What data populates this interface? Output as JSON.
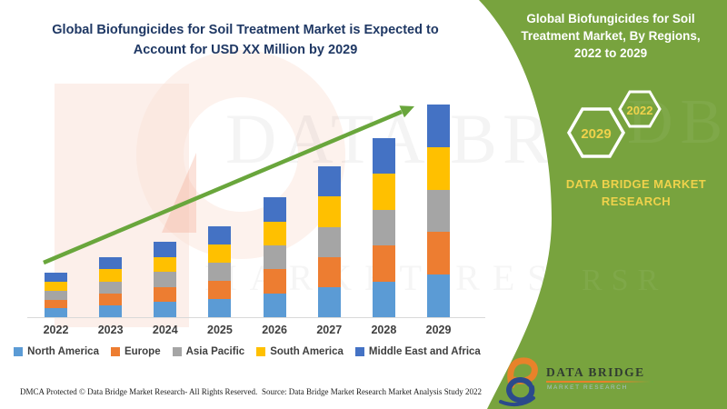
{
  "header": {
    "title_line1": "Global Biofungicides for Soil Treatment Market is Expected to",
    "title_line2": "Account for USD XX Million by 2029",
    "title_color": "#1F3864"
  },
  "chart_data": {
    "type": "bar",
    "stacked": true,
    "title": "Global Biofungicides for Soil Treatment Market is Expected to Account for USD XX Million by 2029",
    "xlabel": "",
    "ylabel": "",
    "units": "relative index (chart shows no numeric axis; values estimated from bar heights)",
    "categories": [
      "2022",
      "2023",
      "2024",
      "2025",
      "2026",
      "2027",
      "2028",
      "2029"
    ],
    "series": [
      {
        "name": "North America",
        "color": "#5B9BD5",
        "values": [
          2.0,
          2.7,
          3.4,
          4.1,
          5.4,
          6.8,
          8.1,
          9.6
        ]
      },
      {
        "name": "Europe",
        "color": "#ED7D31",
        "values": [
          2.0,
          2.7,
          3.4,
          4.1,
          5.4,
          6.8,
          8.1,
          9.6
        ]
      },
      {
        "name": "Asia Pacific",
        "color": "#A5A5A5",
        "values": [
          2.0,
          2.7,
          3.4,
          4.1,
          5.4,
          6.8,
          8.1,
          9.6
        ]
      },
      {
        "name": "South America",
        "color": "#FFC000",
        "values": [
          2.0,
          2.7,
          3.4,
          4.1,
          5.4,
          6.8,
          8.1,
          9.6
        ]
      },
      {
        "name": "Middle East and Africa",
        "color": "#4472C4",
        "values": [
          2.0,
          2.7,
          3.4,
          4.1,
          5.4,
          6.8,
          8.1,
          9.6
        ]
      }
    ],
    "legend_position": "bottom",
    "grid": false,
    "trend_arrow": {
      "present": true,
      "color": "#69A63C",
      "direction": "up-right"
    }
  },
  "side_panel": {
    "bg_color": "#78A33E",
    "title_line1": "Global Biofungicides for Soil",
    "title_line2": "Treatment Market, By Regions,",
    "title_line3": "2022 to 2029",
    "hexagon_left_label": "2029",
    "hexagon_right_label": "2022",
    "brand_line1": "DATA BRIDGE MARKET",
    "brand_line2": "RESEARCH",
    "accent_yellow": "#EFD24B"
  },
  "logo": {
    "name": "DATA BRIDGE",
    "subtitle": "MARKET RESEARCH"
  },
  "watermark": {
    "text_top": "DATA BRIDGE",
    "text_bottom": "MARKET RESEARCH"
  },
  "footer": {
    "dmca": "DMCA Protected © Data Bridge Market Research- All Rights Reserved.",
    "source": "Source: Data Bridge Market Research Market Analysis Study 2022"
  }
}
